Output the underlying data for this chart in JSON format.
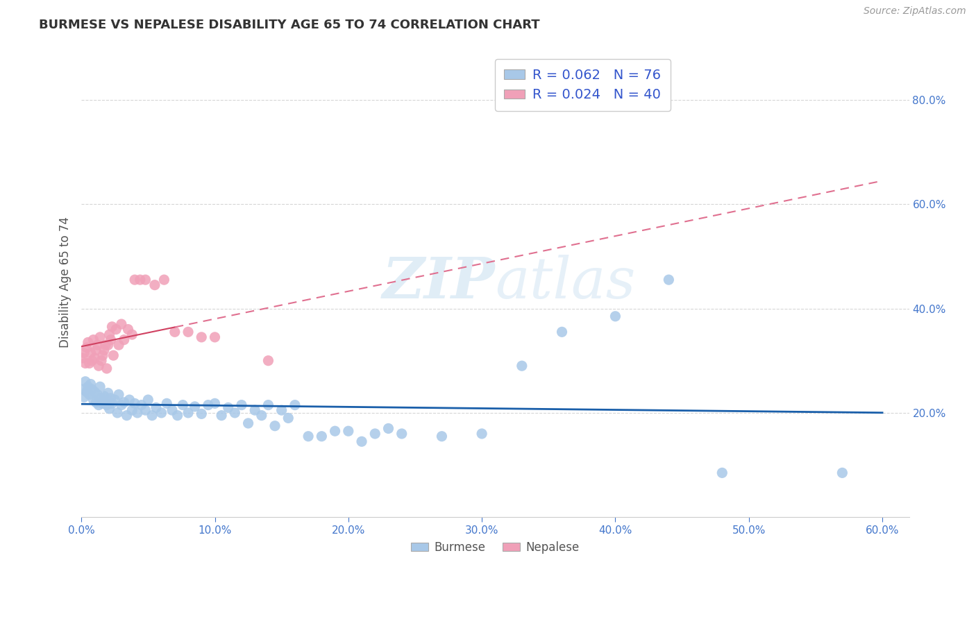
{
  "title": "BURMESE VS NEPALESE DISABILITY AGE 65 TO 74 CORRELATION CHART",
  "source_text": "Source: ZipAtlas.com",
  "ylabel": "Disability Age 65 to 74",
  "watermark": "ZIPatlas",
  "legend_burmese": "Burmese",
  "legend_nepalese": "Nepalese",
  "R_burmese": 0.062,
  "N_burmese": 76,
  "R_nepalese": 0.024,
  "N_nepalese": 40,
  "burmese_color": "#a8c8e8",
  "nepalese_color": "#f0a0b8",
  "burmese_line_color": "#1a5faa",
  "nepalese_line_color_solid": "#d04060",
  "nepalese_line_color_dashed": "#e07090",
  "background_color": "#ffffff",
  "grid_color": "#cccccc",
  "tick_color": "#4477cc",
  "xlim": [
    0.0,
    0.6
  ],
  "ylim": [
    0.0,
    0.9
  ],
  "burmese_x": [
    0.001,
    0.002,
    0.003,
    0.004,
    0.005,
    0.006,
    0.007,
    0.008,
    0.009,
    0.01,
    0.011,
    0.012,
    0.013,
    0.014,
    0.015,
    0.016,
    0.017,
    0.018,
    0.019,
    0.02,
    0.021,
    0.022,
    0.023,
    0.025,
    0.027,
    0.028,
    0.03,
    0.032,
    0.034,
    0.036,
    0.038,
    0.04,
    0.042,
    0.045,
    0.048,
    0.05,
    0.053,
    0.056,
    0.06,
    0.064,
    0.068,
    0.072,
    0.076,
    0.08,
    0.085,
    0.09,
    0.095,
    0.1,
    0.105,
    0.11,
    0.115,
    0.12,
    0.125,
    0.13,
    0.135,
    0.14,
    0.145,
    0.15,
    0.155,
    0.16,
    0.17,
    0.18,
    0.19,
    0.2,
    0.21,
    0.22,
    0.23,
    0.24,
    0.27,
    0.3,
    0.33,
    0.36,
    0.4,
    0.44,
    0.48,
    0.57
  ],
  "burmese_y": [
    0.245,
    0.23,
    0.26,
    0.24,
    0.25,
    0.235,
    0.255,
    0.245,
    0.225,
    0.24,
    0.22,
    0.235,
    0.215,
    0.25,
    0.228,
    0.218,
    0.232,
    0.222,
    0.215,
    0.238,
    0.208,
    0.228,
    0.218,
    0.225,
    0.2,
    0.235,
    0.215,
    0.22,
    0.195,
    0.225,
    0.205,
    0.218,
    0.2,
    0.215,
    0.205,
    0.225,
    0.195,
    0.21,
    0.2,
    0.218,
    0.205,
    0.195,
    0.215,
    0.2,
    0.212,
    0.198,
    0.215,
    0.218,
    0.195,
    0.21,
    0.2,
    0.215,
    0.18,
    0.205,
    0.195,
    0.215,
    0.175,
    0.205,
    0.19,
    0.215,
    0.155,
    0.155,
    0.165,
    0.165,
    0.145,
    0.16,
    0.17,
    0.16,
    0.155,
    0.16,
    0.29,
    0.355,
    0.385,
    0.455,
    0.085,
    0.085
  ],
  "nepalese_x": [
    0.001,
    0.002,
    0.003,
    0.004,
    0.005,
    0.006,
    0.007,
    0.008,
    0.009,
    0.01,
    0.011,
    0.012,
    0.013,
    0.014,
    0.015,
    0.016,
    0.017,
    0.018,
    0.019,
    0.02,
    0.021,
    0.022,
    0.023,
    0.024,
    0.026,
    0.028,
    0.03,
    0.032,
    0.035,
    0.038,
    0.04,
    0.044,
    0.048,
    0.055,
    0.062,
    0.07,
    0.08,
    0.09,
    0.1,
    0.14
  ],
  "nepalese_y": [
    0.305,
    0.315,
    0.295,
    0.325,
    0.335,
    0.295,
    0.315,
    0.3,
    0.34,
    0.305,
    0.32,
    0.33,
    0.29,
    0.345,
    0.3,
    0.31,
    0.32,
    0.33,
    0.285,
    0.33,
    0.35,
    0.34,
    0.365,
    0.31,
    0.36,
    0.33,
    0.37,
    0.34,
    0.36,
    0.35,
    0.455,
    0.455,
    0.455,
    0.445,
    0.455,
    0.355,
    0.355,
    0.345,
    0.345,
    0.3
  ]
}
